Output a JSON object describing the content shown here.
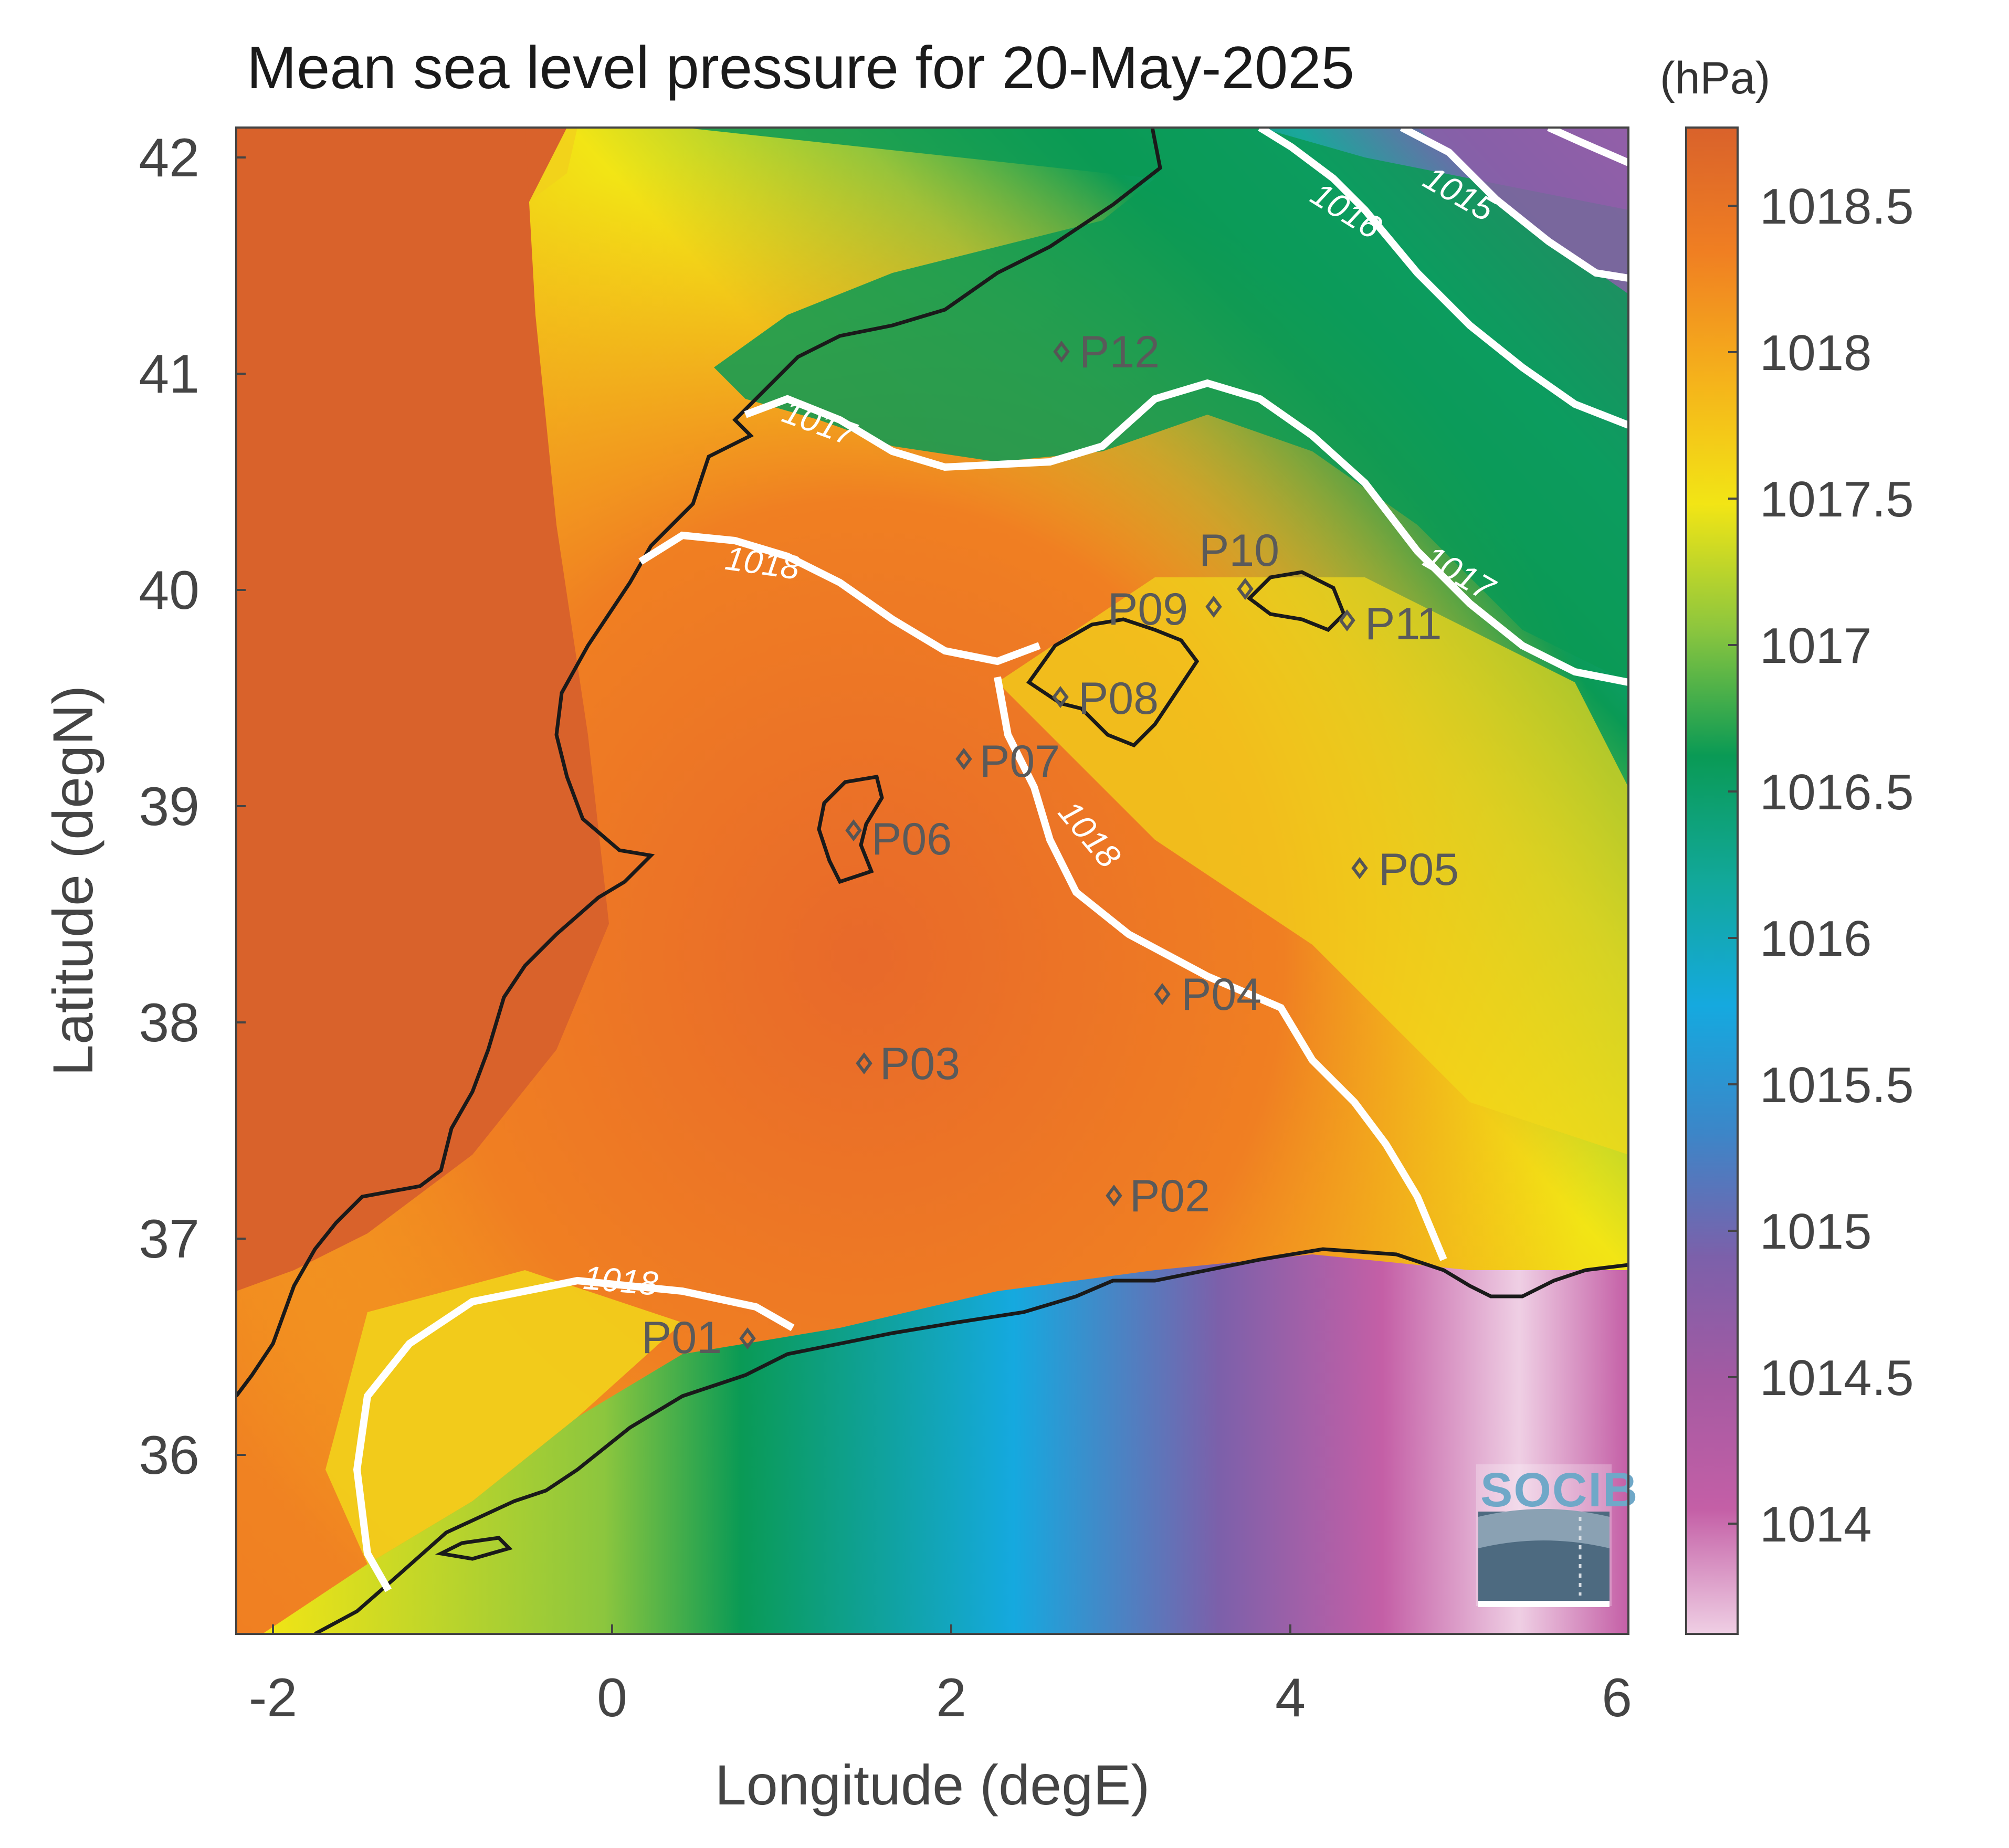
{
  "title": "Mean sea level pressure for 20-May-2025",
  "unit": "(hPa)",
  "xlabel": "Longitude (degE)",
  "ylabel": "Latitude (degN)",
  "x_ticks": [
    "-2",
    "0",
    "2",
    "4",
    "6"
  ],
  "y_ticks": [
    "42",
    "41",
    "40",
    "39",
    "38",
    "37",
    "36"
  ],
  "colorbar": {
    "ticks": [
      "1018.5",
      "1018",
      "1017.5",
      "1017",
      "1016.5",
      "1016",
      "1015.5",
      "1015",
      "1014.5",
      "1014"
    ],
    "colors": [
      "#d9622b",
      "#f07f22",
      "#f5b21b",
      "#f2e515",
      "#8cc63e",
      "#0a9a55",
      "#12a89a",
      "#15a9df",
      "#3c86c8",
      "#7c60aa",
      "#a45aa2",
      "#c45fa6",
      "#efcfe4"
    ]
  },
  "stations": [
    "P01",
    "P02",
    "P03",
    "P04",
    "P05",
    "P06",
    "P07",
    "P08",
    "P09",
    "P10",
    "P11",
    "P12"
  ],
  "contour_labels": [
    "1015",
    "1016",
    "1017",
    "1017",
    "1018",
    "1018",
    "1018"
  ],
  "logo": "SOCIB"
}
